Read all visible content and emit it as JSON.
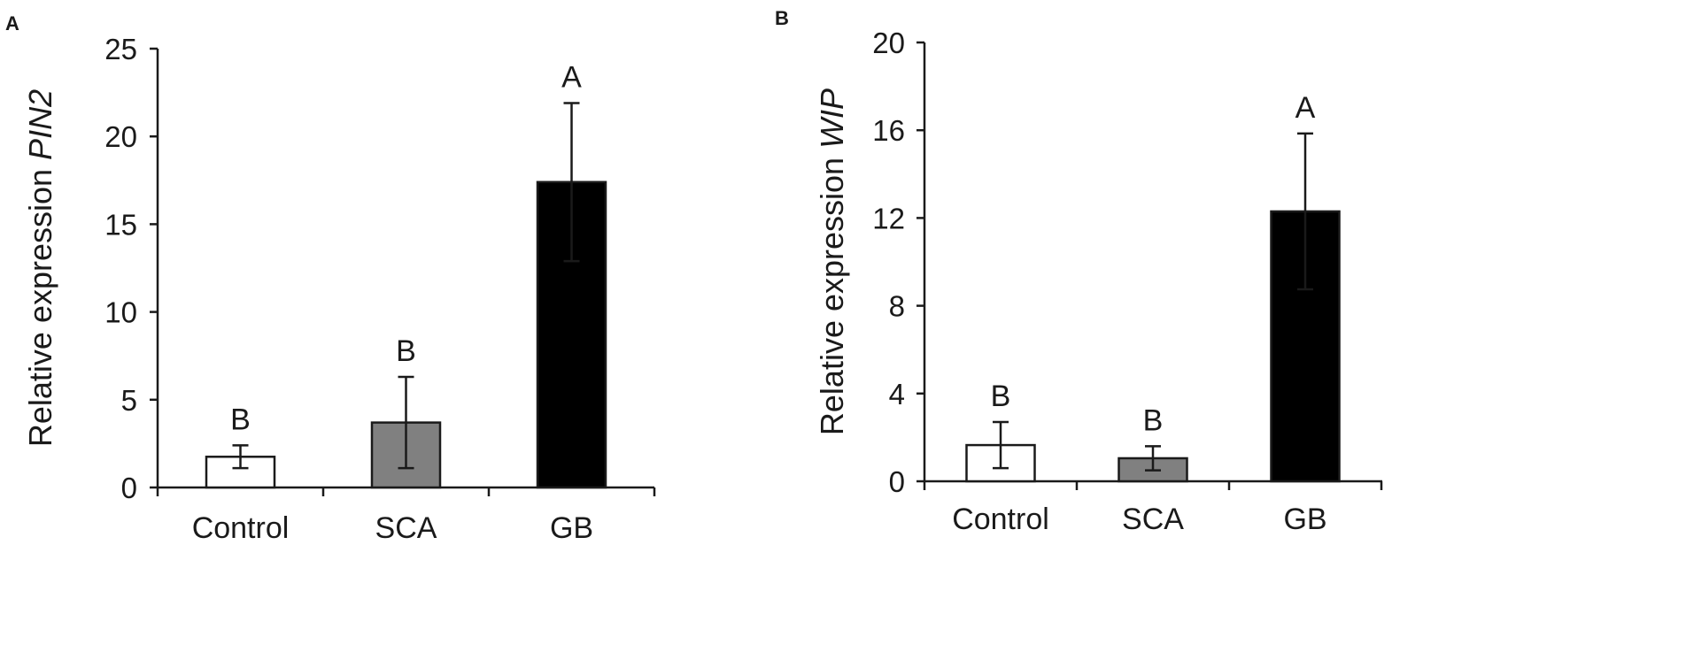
{
  "chart_data": [
    {
      "panel": "A",
      "type": "bar",
      "categories": [
        "Control",
        "SCA",
        "GB"
      ],
      "values": [
        1.75,
        3.7,
        17.4
      ],
      "errors": [
        0.65,
        2.6,
        4.5
      ],
      "significance": [
        "B",
        "B",
        "A"
      ],
      "bar_colors": [
        "#ffffff",
        "#808080",
        "#000000"
      ],
      "ylabel_prefix": "Relative expression ",
      "ylabel_gene": "PIN2",
      "xlabel": "",
      "ylim": [
        0,
        25
      ],
      "yticks": [
        0,
        5,
        10,
        15,
        20,
        25
      ],
      "grid": false,
      "legend": "none"
    },
    {
      "panel": "B",
      "type": "bar",
      "categories": [
        "Control",
        "SCA",
        "GB"
      ],
      "values": [
        1.65,
        1.05,
        12.3
      ],
      "errors": [
        1.05,
        0.55,
        3.55
      ],
      "significance": [
        "B",
        "B",
        "A"
      ],
      "bar_colors": [
        "#ffffff",
        "#808080",
        "#000000"
      ],
      "ylabel_prefix": "Relative expression ",
      "ylabel_gene": "WIP",
      "xlabel": "",
      "ylim": [
        0,
        20
      ],
      "yticks": [
        0,
        4,
        8,
        12,
        16,
        20
      ],
      "grid": false,
      "legend": "none"
    }
  ]
}
